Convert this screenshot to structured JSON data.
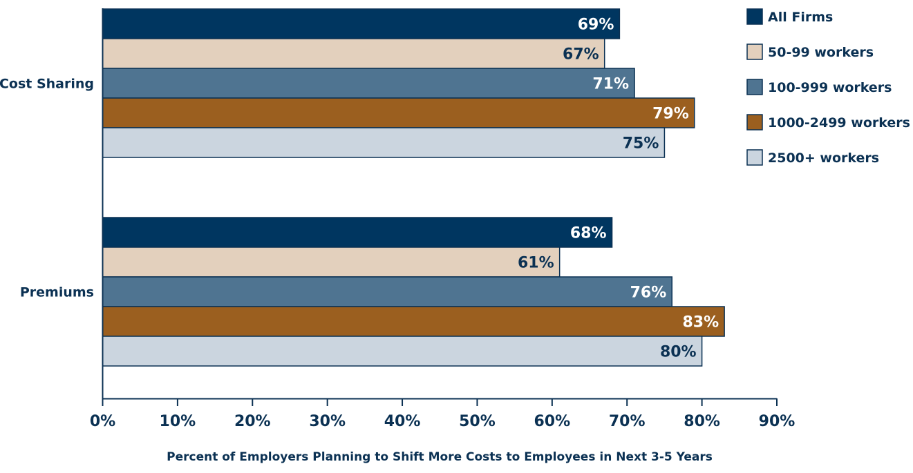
{
  "chart_data": {
    "type": "bar",
    "orientation": "horizontal",
    "categories": [
      "Cost Sharing",
      "Premiums"
    ],
    "series": [
      {
        "name": "All Firms",
        "values": [
          69,
          68
        ],
        "color": "#003660",
        "label_color": "#ffffff"
      },
      {
        "name": "50-99 workers",
        "values": [
          67,
          61
        ],
        "color": "#e3d0bd",
        "label_color": "#0b3153"
      },
      {
        "name": "100-999 workers",
        "values": [
          71,
          76
        ],
        "color": "#4f7491",
        "label_color": "#ffffff"
      },
      {
        "name": "1000-2499 workers",
        "values": [
          79,
          83
        ],
        "color": "#9b5f1f",
        "label_color": "#ffffff"
      },
      {
        "name": "2500+ workers",
        "values": [
          75,
          80
        ],
        "color": "#cbd5df",
        "label_color": "#0b3153"
      }
    ],
    "value_suffix": "%",
    "xlim": [
      0,
      90
    ],
    "xticks": [
      0,
      10,
      20,
      30,
      40,
      50,
      60,
      70,
      80,
      90
    ],
    "xtick_labels": [
      "0%",
      "10%",
      "20%",
      "30%",
      "40%",
      "50%",
      "60%",
      "70%",
      "80%",
      "90%"
    ],
    "xlabel": "Percent of Employers Planning to Shift More Costs to Employees in Next 3-5 Years",
    "grid": false,
    "legend_position": "top-right"
  }
}
